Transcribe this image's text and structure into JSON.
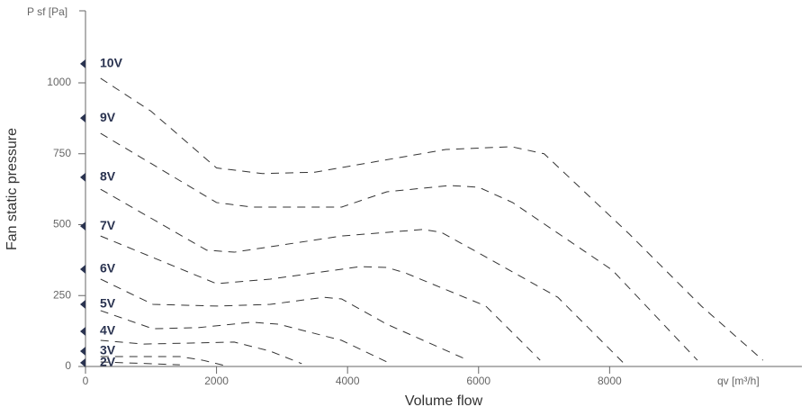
{
  "chart_data": {
    "type": "line",
    "y_unit_label": "P sf [Pa]",
    "x_unit_label": "qv [m³/h]",
    "y_title": "Fan static pressure",
    "x_title": "Volume flow",
    "xlim": [
      0,
      10935
    ],
    "ylim": [
      0,
      1254
    ],
    "xticks": [
      0,
      2000,
      4000,
      6000,
      8000
    ],
    "yticks": [
      0,
      250,
      500,
      750,
      1000
    ],
    "grid": false,
    "dashed": true,
    "series": [
      {
        "name": "10V",
        "color": "#333333",
        "label_value": 1067,
        "x": [
          230,
          1000,
          2000,
          2700,
          3500,
          4500,
          5500,
          6500,
          7000,
          8300,
          9400,
          10340
        ],
        "values": [
          1016,
          900,
          700,
          680,
          685,
          725,
          765,
          775,
          750,
          467,
          213,
          22
        ]
      },
      {
        "name": "9V",
        "color": "#333333",
        "label_value": 876,
        "x": [
          230,
          2000,
          2540,
          3910,
          4600,
          5560,
          6000,
          6520,
          8040,
          9340
        ],
        "values": [
          822,
          578,
          562,
          562,
          616,
          638,
          632,
          578,
          340,
          22
        ]
      },
      {
        "name": "8V",
        "color": "#333333",
        "label_value": 667,
        "x": [
          230,
          1850,
          2270,
          3910,
          5150,
          5430,
          5980,
          7210,
          8240
        ],
        "values": [
          625,
          410,
          403,
          460,
          483,
          473,
          403,
          244,
          6
        ]
      },
      {
        "name": "7V",
        "color": "#333333",
        "label_value": 495,
        "x": [
          230,
          2000,
          2820,
          4190,
          4600,
          4880,
          6110,
          6940
        ],
        "values": [
          460,
          292,
          308,
          352,
          349,
          330,
          213,
          22
        ]
      },
      {
        "name": "6V",
        "color": "#333333",
        "label_value": 343,
        "x": [
          230,
          1030,
          2000,
          2820,
          3640,
          3910,
          4600,
          5840
        ],
        "values": [
          308,
          219,
          213,
          219,
          244,
          238,
          149,
          22
        ]
      },
      {
        "name": "5V",
        "color": "#333333",
        "label_value": 219,
        "x": [
          230,
          1030,
          1720,
          2540,
          2950,
          3910,
          4600
        ],
        "values": [
          197,
          133,
          137,
          156,
          149,
          92,
          16
        ]
      },
      {
        "name": "4V",
        "color": "#333333",
        "label_value": 124,
        "x": [
          230,
          890,
          2270,
          2820,
          3300
        ],
        "values": [
          92,
          79,
          86,
          54,
          10
        ]
      },
      {
        "name": "3V",
        "color": "#333333",
        "label_value": 54,
        "x": [
          230,
          1440,
          1790,
          2130
        ],
        "values": [
          35,
          35,
          22,
          3
        ]
      },
      {
        "name": "2V",
        "color": "#333333",
        "label_value": 13,
        "x": [
          230,
          1440
        ],
        "values": [
          16,
          6
        ]
      }
    ]
  }
}
